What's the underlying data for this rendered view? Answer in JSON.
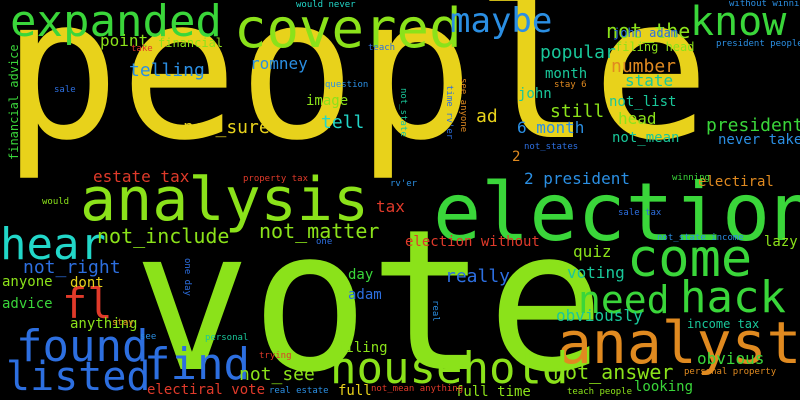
{
  "colors": {
    "background": "#000000",
    "yellow": "#e8d21b",
    "lime": "#8be21a",
    "green": "#3ad63a",
    "cyan": "#22d7c9",
    "teal": "#19c79a",
    "blue": "#2d6fe0",
    "skyblue": "#2b8fe3",
    "orange": "#e08a20",
    "red": "#e03a2a",
    "purple": "#6f49c8"
  },
  "words": [
    {
      "text": "people",
      "color": "#e8d21b"
    },
    {
      "text": "vote",
      "color": "#8be21a"
    },
    {
      "text": "election",
      "color": "#3ad63a"
    },
    {
      "text": "analysis",
      "color": "#8be21a"
    },
    {
      "text": "covered",
      "color": "#8be21a"
    },
    {
      "text": "expanded",
      "color": "#3ad63a"
    },
    {
      "text": "analyst",
      "color": "#e08a20"
    },
    {
      "text": "household",
      "color": "#8be21a"
    },
    {
      "text": "come",
      "color": "#3ad63a"
    },
    {
      "text": "hack",
      "color": "#3ad63a"
    },
    {
      "text": "found",
      "color": "#2d6fe0"
    },
    {
      "text": "find",
      "color": "#2d6fe0"
    },
    {
      "text": "listed",
      "color": "#2d6fe0"
    },
    {
      "text": "hear",
      "color": "#22d7c9"
    },
    {
      "text": "know",
      "color": "#3ad63a"
    },
    {
      "text": "maybe",
      "color": "#2b8fe3"
    },
    {
      "text": "need",
      "color": "#3ad63a"
    },
    {
      "text": "fl",
      "color": "#e03a2a"
    },
    {
      "text": "not_the",
      "color": "#8be21a"
    },
    {
      "text": "not_answer",
      "color": "#8be21a"
    },
    {
      "text": "not_include",
      "color": "#8be21a"
    },
    {
      "text": "not_matter",
      "color": "#8be21a"
    },
    {
      "text": "not_right",
      "color": "#2d6fe0"
    },
    {
      "text": "not_see",
      "color": "#8be21a"
    },
    {
      "text": "not_sure",
      "color": "#e8d21b"
    },
    {
      "text": "popular",
      "color": "#19c79a"
    },
    {
      "text": "number",
      "color": "#e08a20"
    },
    {
      "text": "state",
      "color": "#19c79a"
    },
    {
      "text": "still",
      "color": "#8be21a"
    },
    {
      "text": "tell",
      "color": "#22d7c9"
    },
    {
      "text": "president",
      "color": "#3ad63a"
    },
    {
      "text": "ad",
      "color": "#e8d21b"
    },
    {
      "text": "head",
      "color": "#8be21a"
    },
    {
      "text": "month",
      "color": "#19c79a"
    },
    {
      "text": "john",
      "color": "#19c79a"
    },
    {
      "text": "point",
      "color": "#8be21a"
    },
    {
      "text": "image",
      "color": "#8be21a"
    },
    {
      "text": "telling",
      "color": "#2b8fe3"
    },
    {
      "text": "romney",
      "color": "#2b8fe3"
    },
    {
      "text": "6 month",
      "color": "#2b8fe3"
    },
    {
      "text": "2 president",
      "color": "#2b8fe3"
    },
    {
      "text": "2",
      "color": "#e08a20"
    },
    {
      "text": "estate tax",
      "color": "#e03a2a"
    },
    {
      "text": "tax",
      "color": "#e03a2a"
    },
    {
      "text": "election without",
      "color": "#e03a2a"
    },
    {
      "text": "electiral",
      "color": "#e08a20"
    },
    {
      "text": "electiral vote",
      "color": "#e03a2a"
    },
    {
      "text": "quiz",
      "color": "#8be21a"
    },
    {
      "text": "voting",
      "color": "#19c79a"
    },
    {
      "text": "day",
      "color": "#3ad63a"
    },
    {
      "text": "adam",
      "color": "#2d6fe0"
    },
    {
      "text": "dont",
      "color": "#e8d21b"
    },
    {
      "text": "anyone",
      "color": "#8be21a"
    },
    {
      "text": "advice",
      "color": "#3ad63a"
    },
    {
      "text": "anything",
      "color": "#8be21a"
    },
    {
      "text": "really",
      "color": "#2d6fe0"
    },
    {
      "text": "obviously",
      "color": "#19c79a"
    },
    {
      "text": "obvious",
      "color": "#3ad63a"
    },
    {
      "text": "filing",
      "color": "#8be21a"
    },
    {
      "text": "full",
      "color": "#e8d21b"
    },
    {
      "text": "full time",
      "color": "#8be21a"
    },
    {
      "text": "looking",
      "color": "#3ad63a"
    },
    {
      "text": "lazy",
      "color": "#8be21a"
    },
    {
      "text": "not_list",
      "color": "#19c79a"
    },
    {
      "text": "not_mean",
      "color": "#19c79a"
    },
    {
      "text": "never take",
      "color": "#2b8fe3"
    },
    {
      "text": "income tax",
      "color": "#19c79a"
    },
    {
      "text": "filing head",
      "color": "#8be21a"
    },
    {
      "text": "john adam",
      "color": "#2d6fe0"
    },
    {
      "text": "financial",
      "color": "#8be21a"
    },
    {
      "text": "financial advice",
      "color": "#3ad63a"
    },
    {
      "text": "without winning",
      "color": "#2b8fe3"
    },
    {
      "text": "would never",
      "color": "#22d7c9"
    },
    {
      "text": "president people",
      "color": "#2b8fe3"
    },
    {
      "text": "take",
      "color": "#e03a2a"
    },
    {
      "text": "teach",
      "color": "#2d6fe0"
    },
    {
      "text": "sale",
      "color": "#2d6fe0"
    },
    {
      "text": "question",
      "color": "#2b8fe3"
    },
    {
      "text": "not_state",
      "color": "#19c79a"
    },
    {
      "text": "not_states",
      "color": "#2d6fe0"
    },
    {
      "text": "time rv'er",
      "color": "#2d6fe0"
    },
    {
      "text": "see anyone",
      "color": "#e08a20"
    },
    {
      "text": "stay 6",
      "color": "#e08a20"
    },
    {
      "text": "property tax",
      "color": "#e03a2a"
    },
    {
      "text": "rv'er",
      "color": "#2b8fe3"
    },
    {
      "text": "winning",
      "color": "#3ad63a"
    },
    {
      "text": "would",
      "color": "#8be21a"
    },
    {
      "text": "one",
      "color": "#2d6fe0"
    },
    {
      "text": "one day",
      "color": "#2d6fe0"
    },
    {
      "text": "sale tax",
      "color": "#2d6fe0"
    },
    {
      "text": "not_state income",
      "color": "#2b8fe3"
    },
    {
      "text": "stay",
      "color": "#e08a20"
    },
    {
      "text": "see",
      "color": "#2b8fe3"
    },
    {
      "text": "personal",
      "color": "#19c79a"
    },
    {
      "text": "trying",
      "color": "#e03a2a"
    },
    {
      "text": "real",
      "color": "#2b8fe3"
    },
    {
      "text": "real estate",
      "color": "#2b8fe3"
    },
    {
      "text": "not_mean anything",
      "color": "#e03a2a"
    },
    {
      "text": "teach people",
      "color": "#8be21a"
    },
    {
      "text": "personal property",
      "color": "#e08a20"
    }
  ]
}
